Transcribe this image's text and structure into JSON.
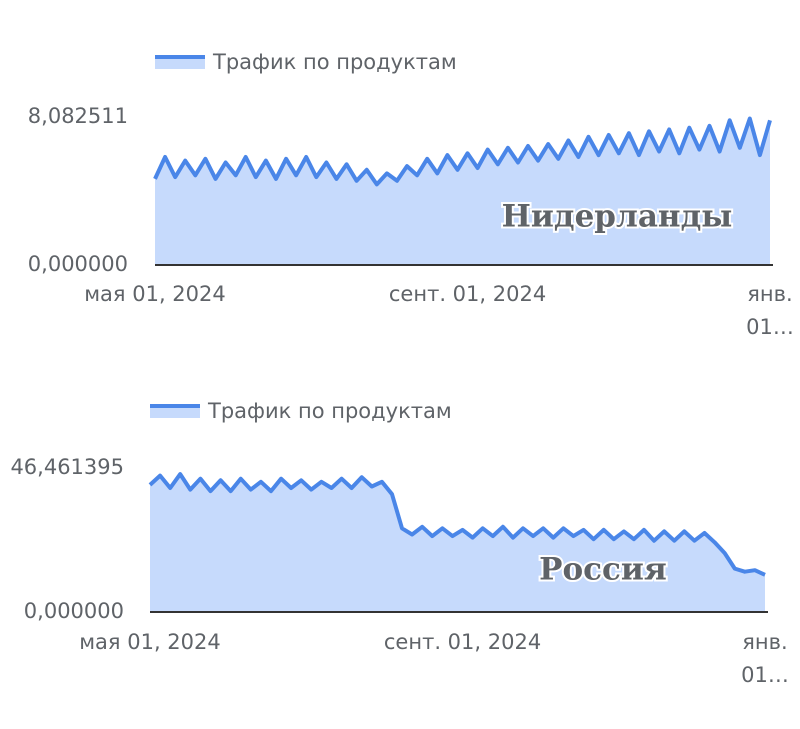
{
  "chart_data": [
    {
      "type": "area",
      "legend": "top-left",
      "categories": [
        "мая 01, 2024",
        null,
        null,
        null,
        null,
        null,
        null,
        null,
        null,
        null,
        null,
        null,
        null,
        null,
        null,
        null,
        null,
        null,
        null,
        null,
        null,
        null,
        null,
        null,
        null,
        null,
        null,
        null,
        null,
        null,
        null,
        "сент. 01, 2024",
        null,
        null,
        null,
        null,
        null,
        null,
        null,
        null,
        null,
        null,
        null,
        null,
        null,
        null,
        null,
        null,
        null,
        null,
        null,
        null,
        null,
        null,
        null,
        null,
        null,
        null,
        null,
        null,
        null,
        "янв. 01…"
      ],
      "series": [
        {
          "name": "Трафик по продуктам",
          "color": "#4a86e8",
          "fill": "#c6dafc",
          "values": [
            4.7,
            5.9,
            4.8,
            5.7,
            4.9,
            5.8,
            4.7,
            5.6,
            4.9,
            5.9,
            4.8,
            5.7,
            4.7,
            5.8,
            4.9,
            5.9,
            4.8,
            5.6,
            4.7,
            5.5,
            4.6,
            5.2,
            4.4,
            5.0,
            4.6,
            5.4,
            4.9,
            5.8,
            5.0,
            6.0,
            5.2,
            6.1,
            5.3,
            6.3,
            5.5,
            6.4,
            5.6,
            6.5,
            5.7,
            6.6,
            5.8,
            6.8,
            5.9,
            7.0,
            6.0,
            7.1,
            6.1,
            7.2,
            6.0,
            7.3,
            6.2,
            7.4,
            6.1,
            7.5,
            6.3,
            7.6,
            6.2,
            7.9,
            6.4,
            8.0,
            6.0,
            7.9
          ]
        }
      ],
      "ylim": [
        0,
        8.082511
      ],
      "yticks": [
        {
          "value": 0,
          "label": "0,000000"
        },
        {
          "value": 8.082511,
          "label": "8,082511"
        }
      ],
      "annotation": "Нидерланды",
      "annotation_color": "#1e7fd9"
    },
    {
      "type": "area",
      "legend": "top-left",
      "categories": [
        "мая 01, 2024",
        null,
        null,
        null,
        null,
        null,
        null,
        null,
        null,
        null,
        null,
        null,
        null,
        null,
        null,
        null,
        null,
        null,
        null,
        null,
        null,
        null,
        null,
        null,
        null,
        null,
        null,
        null,
        null,
        null,
        null,
        "сент. 01, 2024",
        null,
        null,
        null,
        null,
        null,
        null,
        null,
        null,
        null,
        null,
        null,
        null,
        null,
        null,
        null,
        null,
        null,
        null,
        null,
        null,
        null,
        null,
        null,
        null,
        null,
        null,
        null,
        null,
        null,
        "янв. 01…"
      ],
      "series": [
        {
          "name": "Трафик по продуктам",
          "color": "#4a86e8",
          "fill": "#c6dafc",
          "values": [
            41,
            44,
            40,
            44.5,
            39.5,
            43,
            39,
            42.5,
            39,
            43,
            39.5,
            42,
            39,
            43,
            40,
            42.5,
            39.5,
            42,
            40,
            43,
            40,
            43.5,
            40.5,
            42,
            38,
            27,
            25,
            27.5,
            24.5,
            27,
            24.5,
            26.5,
            24,
            27,
            24.5,
            27.5,
            24,
            27,
            24.5,
            27,
            24,
            27,
            24.5,
            26.5,
            23.5,
            26.5,
            23.5,
            26,
            23.5,
            26.5,
            23,
            26,
            23,
            26,
            23,
            25.5,
            22.5,
            19,
            14,
            13,
            13.5,
            12
          ]
        }
      ],
      "ylim": [
        0,
        46.461395
      ],
      "yticks": [
        {
          "value": 0,
          "label": "0,000000"
        },
        {
          "value": 46.461395,
          "label": "46,461395"
        }
      ],
      "annotation": "Россия",
      "annotation_color": "#1e7fd9"
    }
  ]
}
